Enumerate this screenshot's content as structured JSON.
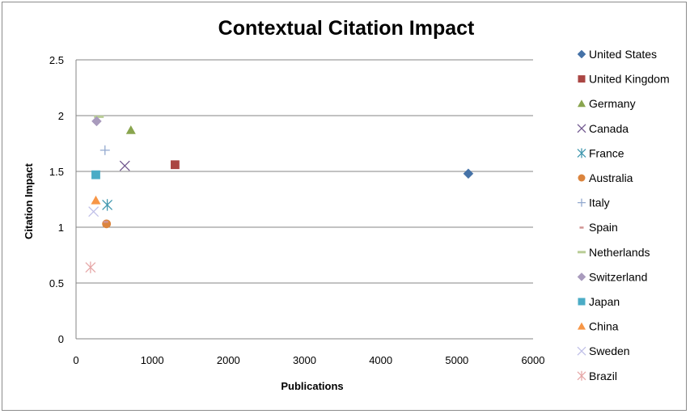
{
  "chart_data": {
    "type": "scatter",
    "title": "Contextual Citation Impact",
    "xlabel": "Publications",
    "ylabel": "Citation Impact",
    "xlim": [
      0,
      6000
    ],
    "ylim": [
      0,
      2.5
    ],
    "xticks": [
      "0",
      "1000",
      "2000",
      "3000",
      "4000",
      "5000",
      "6000"
    ],
    "yticks": [
      "0",
      "0.5",
      "1",
      "1.5",
      "2",
      "2.5"
    ],
    "grid": "horizontal",
    "legend_position": "right",
    "series": [
      {
        "name": "United States",
        "marker": "diamond",
        "color": "#4572A7",
        "x": 5150,
        "y": 1.48
      },
      {
        "name": "United Kingdom",
        "marker": "square",
        "color": "#AA4643",
        "x": 1300,
        "y": 1.56
      },
      {
        "name": "Germany",
        "marker": "triangle",
        "color": "#89A54E",
        "x": 720,
        "y": 1.87
      },
      {
        "name": "Canada",
        "marker": "x",
        "color": "#71588F",
        "x": 640,
        "y": 1.55
      },
      {
        "name": "France",
        "marker": "asterisk",
        "color": "#4198AF",
        "x": 410,
        "y": 1.2
      },
      {
        "name": "Australia",
        "marker": "circle",
        "color": "#DB843D",
        "x": 400,
        "y": 1.03
      },
      {
        "name": "Italy",
        "marker": "plus",
        "color": "#93A9CF",
        "x": 380,
        "y": 1.69
      },
      {
        "name": "Spain",
        "marker": "dash",
        "color": "#D19392",
        "x": 390,
        "y": 1.05
      },
      {
        "name": "Netherlands",
        "marker": "hline",
        "color": "#B9CD96",
        "x": 300,
        "y": 1.99
      },
      {
        "name": "Switzerland",
        "marker": "diamond",
        "color": "#A99BBD",
        "x": 270,
        "y": 1.95
      },
      {
        "name": "Japan",
        "marker": "square",
        "color": "#4BACC6",
        "x": 260,
        "y": 1.47
      },
      {
        "name": "China",
        "marker": "triangle",
        "color": "#F79646",
        "x": 260,
        "y": 1.24
      },
      {
        "name": "Sweden",
        "marker": "x",
        "color": "#C0C0E8",
        "x": 230,
        "y": 1.14
      },
      {
        "name": "Brazil",
        "marker": "asterisk",
        "color": "#E6A8A8",
        "x": 190,
        "y": 0.64
      }
    ]
  }
}
